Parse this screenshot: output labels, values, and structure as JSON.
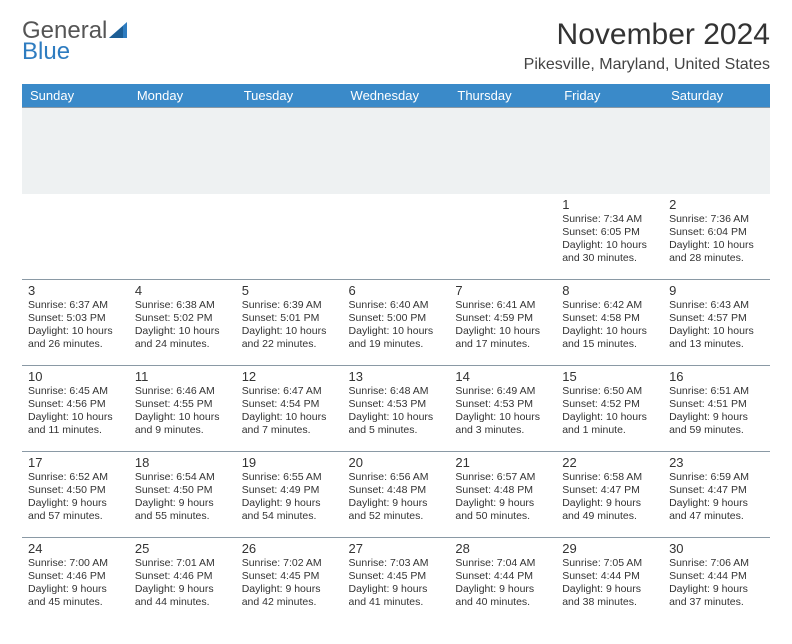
{
  "branding": {
    "line1": "General",
    "line2": "Blue",
    "tri_color": "#2e7cc0"
  },
  "header": {
    "month_title": "November 2024",
    "location": "Pikesville, Maryland, United States"
  },
  "styling": {
    "header_bg": "#3a8ac9",
    "header_text": "#ffffff",
    "row_divider": "#8a99a5",
    "blank_row_bg": "#eef1f2",
    "page_bg": "#ffffff",
    "body_text": "#333333",
    "daynum_fontsize": 13,
    "detail_fontsize": 10.5,
    "title_fontsize": 30,
    "location_fontsize": 16
  },
  "day_headers": [
    "Sunday",
    "Monday",
    "Tuesday",
    "Wednesday",
    "Thursday",
    "Friday",
    "Saturday"
  ],
  "weeks": [
    [
      {
        "n": "",
        "sr": "",
        "ss": "",
        "dl": ""
      },
      {
        "n": "",
        "sr": "",
        "ss": "",
        "dl": ""
      },
      {
        "n": "",
        "sr": "",
        "ss": "",
        "dl": ""
      },
      {
        "n": "",
        "sr": "",
        "ss": "",
        "dl": ""
      },
      {
        "n": "",
        "sr": "",
        "ss": "",
        "dl": ""
      },
      {
        "n": "1",
        "sr": "Sunrise: 7:34 AM",
        "ss": "Sunset: 6:05 PM",
        "dl": "Daylight: 10 hours and 30 minutes."
      },
      {
        "n": "2",
        "sr": "Sunrise: 7:36 AM",
        "ss": "Sunset: 6:04 PM",
        "dl": "Daylight: 10 hours and 28 minutes."
      }
    ],
    [
      {
        "n": "3",
        "sr": "Sunrise: 6:37 AM",
        "ss": "Sunset: 5:03 PM",
        "dl": "Daylight: 10 hours and 26 minutes."
      },
      {
        "n": "4",
        "sr": "Sunrise: 6:38 AM",
        "ss": "Sunset: 5:02 PM",
        "dl": "Daylight: 10 hours and 24 minutes."
      },
      {
        "n": "5",
        "sr": "Sunrise: 6:39 AM",
        "ss": "Sunset: 5:01 PM",
        "dl": "Daylight: 10 hours and 22 minutes."
      },
      {
        "n": "6",
        "sr": "Sunrise: 6:40 AM",
        "ss": "Sunset: 5:00 PM",
        "dl": "Daylight: 10 hours and 19 minutes."
      },
      {
        "n": "7",
        "sr": "Sunrise: 6:41 AM",
        "ss": "Sunset: 4:59 PM",
        "dl": "Daylight: 10 hours and 17 minutes."
      },
      {
        "n": "8",
        "sr": "Sunrise: 6:42 AM",
        "ss": "Sunset: 4:58 PM",
        "dl": "Daylight: 10 hours and 15 minutes."
      },
      {
        "n": "9",
        "sr": "Sunrise: 6:43 AM",
        "ss": "Sunset: 4:57 PM",
        "dl": "Daylight: 10 hours and 13 minutes."
      }
    ],
    [
      {
        "n": "10",
        "sr": "Sunrise: 6:45 AM",
        "ss": "Sunset: 4:56 PM",
        "dl": "Daylight: 10 hours and 11 minutes."
      },
      {
        "n": "11",
        "sr": "Sunrise: 6:46 AM",
        "ss": "Sunset: 4:55 PM",
        "dl": "Daylight: 10 hours and 9 minutes."
      },
      {
        "n": "12",
        "sr": "Sunrise: 6:47 AM",
        "ss": "Sunset: 4:54 PM",
        "dl": "Daylight: 10 hours and 7 minutes."
      },
      {
        "n": "13",
        "sr": "Sunrise: 6:48 AM",
        "ss": "Sunset: 4:53 PM",
        "dl": "Daylight: 10 hours and 5 minutes."
      },
      {
        "n": "14",
        "sr": "Sunrise: 6:49 AM",
        "ss": "Sunset: 4:53 PM",
        "dl": "Daylight: 10 hours and 3 minutes."
      },
      {
        "n": "15",
        "sr": "Sunrise: 6:50 AM",
        "ss": "Sunset: 4:52 PM",
        "dl": "Daylight: 10 hours and 1 minute."
      },
      {
        "n": "16",
        "sr": "Sunrise: 6:51 AM",
        "ss": "Sunset: 4:51 PM",
        "dl": "Daylight: 9 hours and 59 minutes."
      }
    ],
    [
      {
        "n": "17",
        "sr": "Sunrise: 6:52 AM",
        "ss": "Sunset: 4:50 PM",
        "dl": "Daylight: 9 hours and 57 minutes."
      },
      {
        "n": "18",
        "sr": "Sunrise: 6:54 AM",
        "ss": "Sunset: 4:50 PM",
        "dl": "Daylight: 9 hours and 55 minutes."
      },
      {
        "n": "19",
        "sr": "Sunrise: 6:55 AM",
        "ss": "Sunset: 4:49 PM",
        "dl": "Daylight: 9 hours and 54 minutes."
      },
      {
        "n": "20",
        "sr": "Sunrise: 6:56 AM",
        "ss": "Sunset: 4:48 PM",
        "dl": "Daylight: 9 hours and 52 minutes."
      },
      {
        "n": "21",
        "sr": "Sunrise: 6:57 AM",
        "ss": "Sunset: 4:48 PM",
        "dl": "Daylight: 9 hours and 50 minutes."
      },
      {
        "n": "22",
        "sr": "Sunrise: 6:58 AM",
        "ss": "Sunset: 4:47 PM",
        "dl": "Daylight: 9 hours and 49 minutes."
      },
      {
        "n": "23",
        "sr": "Sunrise: 6:59 AM",
        "ss": "Sunset: 4:47 PM",
        "dl": "Daylight: 9 hours and 47 minutes."
      }
    ],
    [
      {
        "n": "24",
        "sr": "Sunrise: 7:00 AM",
        "ss": "Sunset: 4:46 PM",
        "dl": "Daylight: 9 hours and 45 minutes."
      },
      {
        "n": "25",
        "sr": "Sunrise: 7:01 AM",
        "ss": "Sunset: 4:46 PM",
        "dl": "Daylight: 9 hours and 44 minutes."
      },
      {
        "n": "26",
        "sr": "Sunrise: 7:02 AM",
        "ss": "Sunset: 4:45 PM",
        "dl": "Daylight: 9 hours and 42 minutes."
      },
      {
        "n": "27",
        "sr": "Sunrise: 7:03 AM",
        "ss": "Sunset: 4:45 PM",
        "dl": "Daylight: 9 hours and 41 minutes."
      },
      {
        "n": "28",
        "sr": "Sunrise: 7:04 AM",
        "ss": "Sunset: 4:44 PM",
        "dl": "Daylight: 9 hours and 40 minutes."
      },
      {
        "n": "29",
        "sr": "Sunrise: 7:05 AM",
        "ss": "Sunset: 4:44 PM",
        "dl": "Daylight: 9 hours and 38 minutes."
      },
      {
        "n": "30",
        "sr": "Sunrise: 7:06 AM",
        "ss": "Sunset: 4:44 PM",
        "dl": "Daylight: 9 hours and 37 minutes."
      }
    ]
  ]
}
